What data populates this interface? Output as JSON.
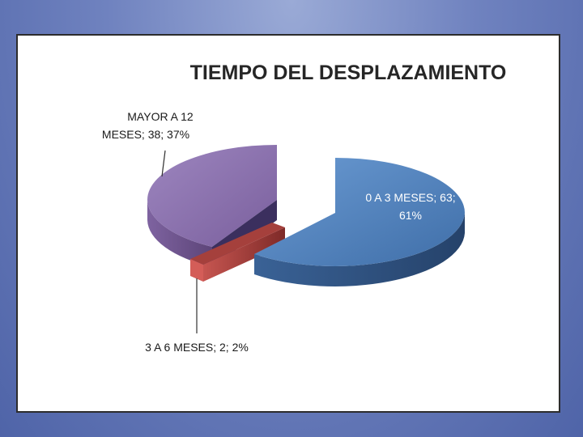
{
  "chart_data": {
    "type": "pie",
    "title": "TIEMPO DEL DESPLAZAMIENTO",
    "categories": [
      "0 A 3 MESES",
      "3 A 6 MESES",
      "MAYOR A 12 MESES"
    ],
    "values": [
      63,
      2,
      38
    ],
    "percents": [
      61,
      2,
      37
    ],
    "colors": [
      "#4f81bd",
      "#c0504d",
      "#8064a2"
    ],
    "exploded": true,
    "three_d": true
  },
  "labels": {
    "slice_0_line1": "0 A 3 MESES; 63;",
    "slice_0_line2": "61%",
    "slice_1": "3 A 6 MESES; 2; 2%",
    "slice_2_line1": "MAYOR A 12",
    "slice_2_line2": "MESES; 38; 37%"
  }
}
